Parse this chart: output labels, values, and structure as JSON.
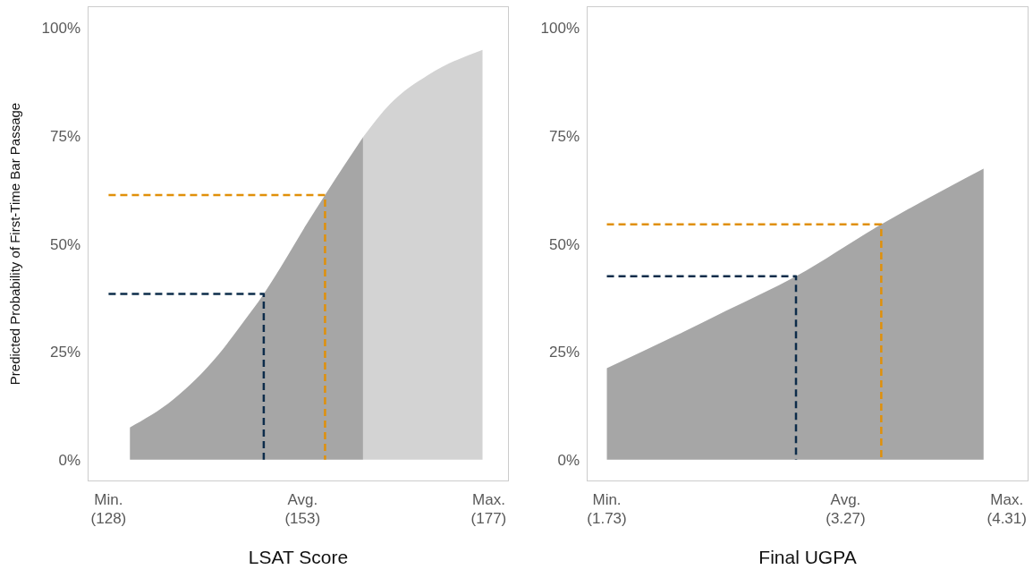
{
  "chart_data": [
    {
      "type": "area",
      "xlabel": "LSAT Score",
      "ylabel": "Predicted Probability of First-Time Bar Passage",
      "xlim": [
        125.3,
        179.6
      ],
      "xticks": [
        {
          "value": 128,
          "label": "Min.\n(128)"
        },
        {
          "value": 153,
          "label": "Avg.\n(153)"
        },
        {
          "value": 177,
          "label": "Max.\n(177)"
        }
      ],
      "ylim": [
        -5,
        105
      ],
      "yticks": [
        {
          "value": 0,
          "label": "0%"
        },
        {
          "value": 25,
          "label": "25%"
        },
        {
          "value": 50,
          "label": "50%"
        },
        {
          "value": 75,
          "label": "75%"
        },
        {
          "value": 100,
          "label": "100%"
        }
      ],
      "grid": false,
      "legend": false,
      "series": [
        {
          "color": "#a6a6a6",
          "x": [
            130.75,
            136.3,
            142.1,
            145.0,
            148.0,
            151.0,
            153.5,
            155.9,
            160.8
          ],
          "values": [
            7.5,
            13.9,
            24.2,
            31.0,
            38.4,
            47.0,
            54.5,
            61.3,
            74.7
          ]
        },
        {
          "color": "#d3d3d3",
          "x": [
            160.8,
            164.3,
            169.2,
            176.2
          ],
          "values": [
            74.7,
            82.4,
            89.1,
            94.9
          ]
        },
        {
          "type": "line",
          "color": "#0d2c4a",
          "line_style": "dashed",
          "x": [
            128,
            148.0,
            148.0
          ],
          "values": [
            38.4,
            38.4,
            0
          ]
        },
        {
          "type": "line",
          "color": "#e0900a",
          "line_style": "dashed",
          "x": [
            128,
            155.9,
            155.9
          ],
          "values": [
            61.3,
            61.3,
            0
          ]
        }
      ]
    },
    {
      "type": "area",
      "xlabel": "Final UGPA",
      "xlim": [
        1.6,
        4.45
      ],
      "xticks": [
        {
          "value": 1.73,
          "label": "Min.\n(1.73)"
        },
        {
          "value": 3.27,
          "label": "Avg.\n(3.27)"
        },
        {
          "value": 4.31,
          "label": "Max.\n(4.31)"
        }
      ],
      "ylim": [
        -5,
        105
      ],
      "yticks": [
        {
          "value": 0,
          "label": "0%"
        },
        {
          "value": 25,
          "label": "25%"
        },
        {
          "value": 50,
          "label": "50%"
        },
        {
          "value": 75,
          "label": "75%"
        },
        {
          "value": 100,
          "label": "100%"
        }
      ],
      "grid": false,
      "legend": false,
      "series": [
        {
          "color": "#a6a6a6",
          "x": [
            1.73,
            2.19,
            2.5,
            2.95,
            3.5,
            4.16
          ],
          "values": [
            21.2,
            29,
            34.5,
            42.5,
            54.5,
            67.4
          ]
        },
        {
          "type": "line",
          "color": "#0d2c4a",
          "line_style": "dashed",
          "x": [
            1.73,
            2.95,
            2.95
          ],
          "values": [
            42.5,
            42.5,
            0
          ]
        },
        {
          "type": "line",
          "color": "#e0900a",
          "line_style": "dashed",
          "x": [
            1.73,
            3.5,
            3.5
          ],
          "values": [
            54.5,
            54.5,
            0
          ]
        }
      ]
    }
  ]
}
